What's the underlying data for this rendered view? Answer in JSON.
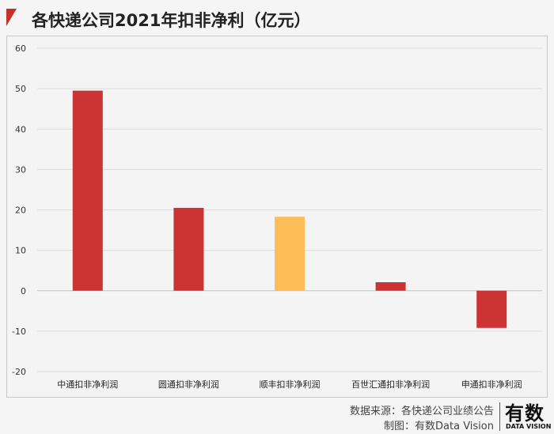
{
  "title": "各快递公司2021年扣非净利（亿元）",
  "source": {
    "line1": "数据来源：各快递公司业绩公告",
    "line2": "制图：有数Data Vision"
  },
  "logo": {
    "main": "有数",
    "sub": "DATA VISION"
  },
  "colors": {
    "accent": "#c9302c",
    "bar": "#cc3333",
    "highlight": "#ffbd5a"
  },
  "chart_data": {
    "type": "bar",
    "categories": [
      "中通扣非净利润",
      "圆通扣非净利润",
      "顺丰扣非净利润",
      "百世汇通扣非净利润",
      "申通扣非净利润"
    ],
    "values": [
      49.5,
      20.5,
      18.3,
      2.1,
      -9.2
    ],
    "highlight_index": 2,
    "ylim": [
      -20,
      60
    ],
    "yticks": [
      -20,
      -10,
      0,
      10,
      20,
      30,
      40,
      50,
      60
    ],
    "grid": true,
    "legend": "none",
    "title": "各快递公司2021年扣非净利（亿元）",
    "xlabel": "",
    "ylabel": ""
  }
}
